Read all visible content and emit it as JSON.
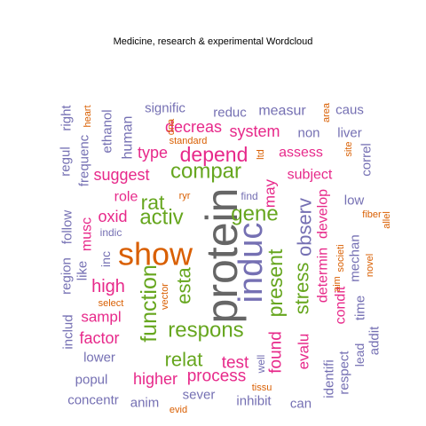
{
  "chart_data": {
    "type": "wordcloud",
    "title": "Medicine, research & experimental  Wordcloud",
    "palette": {
      "gray": "#666666",
      "pink": "#e7298a",
      "green": "#66a61e",
      "purple": "#7570b3",
      "orange": "#d95f02"
    },
    "words": [
      {
        "text": "protein",
        "color": "gray"
      },
      {
        "text": "show",
        "color": "orange"
      },
      {
        "text": "induc",
        "color": "purple"
      },
      {
        "text": "respons",
        "color": "green"
      },
      {
        "text": "compar",
        "color": "green"
      },
      {
        "text": "function",
        "color": "green"
      },
      {
        "text": "activ",
        "color": "green"
      },
      {
        "text": "gene",
        "color": "green"
      },
      {
        "text": "present",
        "color": "green"
      },
      {
        "text": "depend",
        "color": "pink"
      },
      {
        "text": "stress",
        "color": "green"
      },
      {
        "text": "observ",
        "color": "purple"
      },
      {
        "text": "rat",
        "color": "green"
      },
      {
        "text": "esta",
        "color": "green"
      },
      {
        "text": "high",
        "color": "pink"
      },
      {
        "text": "found",
        "color": "pink"
      },
      {
        "text": "relat",
        "color": "green"
      },
      {
        "text": "process",
        "color": "pink"
      },
      {
        "text": "test",
        "color": "pink"
      },
      {
        "text": "suggest",
        "color": "pink"
      },
      {
        "text": "type",
        "color": "pink"
      },
      {
        "text": "system",
        "color": "pink"
      },
      {
        "text": "decreas",
        "color": "pink"
      },
      {
        "text": "factor",
        "color": "pink"
      },
      {
        "text": "higher",
        "color": "pink"
      },
      {
        "text": "oxid",
        "color": "pink"
      },
      {
        "text": "may",
        "color": "pink"
      },
      {
        "text": "evalu",
        "color": "pink"
      },
      {
        "text": "develop",
        "color": "pink"
      },
      {
        "text": "determin",
        "color": "pink"
      },
      {
        "text": "sampl",
        "color": "pink"
      },
      {
        "text": "musc",
        "color": "pink"
      },
      {
        "text": "role",
        "color": "pink"
      },
      {
        "text": "assess",
        "color": "pink"
      },
      {
        "text": "subject",
        "color": "pink"
      },
      {
        "text": "condit",
        "color": "pink"
      },
      {
        "text": "mechan",
        "color": "purple"
      },
      {
        "text": "measur",
        "color": "purple"
      },
      {
        "text": "human",
        "color": "purple"
      },
      {
        "text": "signific",
        "color": "purple"
      },
      {
        "text": "reduc",
        "color": "purple"
      },
      {
        "text": "non",
        "color": "purple"
      },
      {
        "text": "liver",
        "color": "purple"
      },
      {
        "text": "caus",
        "color": "purple"
      },
      {
        "text": "frequenc",
        "color": "purple"
      },
      {
        "text": "regul",
        "color": "purple"
      },
      {
        "text": "right",
        "color": "purple"
      },
      {
        "text": "ethanol",
        "color": "purple"
      },
      {
        "text": "follow",
        "color": "purple"
      },
      {
        "text": "region",
        "color": "purple"
      },
      {
        "text": "like",
        "color": "purple"
      },
      {
        "text": "includ",
        "color": "purple"
      },
      {
        "text": "lower",
        "color": "purple"
      },
      {
        "text": "popul",
        "color": "purple"
      },
      {
        "text": "concentr",
        "color": "purple"
      },
      {
        "text": "anim",
        "color": "purple"
      },
      {
        "text": "sever",
        "color": "purple"
      },
      {
        "text": "inhibit",
        "color": "purple"
      },
      {
        "text": "can",
        "color": "purple"
      },
      {
        "text": "identifi",
        "color": "purple"
      },
      {
        "text": "respect",
        "color": "purple"
      },
      {
        "text": "lead",
        "color": "purple"
      },
      {
        "text": "addit",
        "color": "purple"
      },
      {
        "text": "time",
        "color": "purple"
      },
      {
        "text": "low",
        "color": "purple"
      },
      {
        "text": "correl",
        "color": "purple"
      },
      {
        "text": "inc",
        "color": "purple"
      },
      {
        "text": "indic",
        "color": "purple"
      },
      {
        "text": "find",
        "color": "purple"
      },
      {
        "text": "well",
        "color": "purple"
      },
      {
        "text": "heart",
        "color": "orange"
      },
      {
        "text": "dna",
        "color": "orange"
      },
      {
        "text": "standard",
        "color": "orange"
      },
      {
        "text": "ltd",
        "color": "orange"
      },
      {
        "text": "area",
        "color": "orange"
      },
      {
        "text": "site",
        "color": "orange"
      },
      {
        "text": "ryr",
        "color": "orange"
      },
      {
        "text": "fiber",
        "color": "orange"
      },
      {
        "text": "allel",
        "color": "orange"
      },
      {
        "text": "aim",
        "color": "orange"
      },
      {
        "text": "societi",
        "color": "orange"
      },
      {
        "text": "novel",
        "color": "orange"
      },
      {
        "text": "vector",
        "color": "orange"
      },
      {
        "text": "select",
        "color": "orange"
      },
      {
        "text": "tissu",
        "color": "orange"
      },
      {
        "text": "evid",
        "color": "orange"
      }
    ]
  }
}
